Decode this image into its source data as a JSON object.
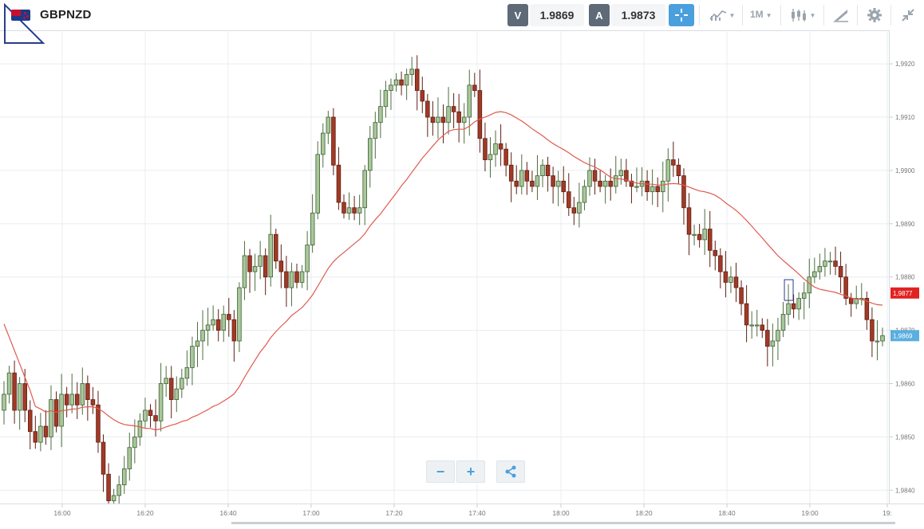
{
  "toolbar": {
    "symbol": "GBPNZD",
    "bid_label": "V",
    "bid_value": "1.9869",
    "ask_label": "A",
    "ask_value": "1.9873",
    "timeframe": "1M",
    "icons": [
      "flag-icon",
      "crosshair-icon",
      "indicators-icon",
      "timeframe-dropdown",
      "candles-icon",
      "draw-icon",
      "settings-icon",
      "collapse-icon"
    ]
  },
  "zoom": {
    "minus": "−",
    "plus": "+",
    "share_icon": "share-icon"
  },
  "colors": {
    "bull": "#5b8a4a",
    "bull_fill": "#a8c79a",
    "bear": "#8b2e1f",
    "bear_fill": "#a13a26",
    "ma": "#e05a50",
    "grid": "#e9ecef",
    "bid_tag": "#e12222",
    "last_tag": "#5aaee0"
  },
  "chart_data": {
    "type": "candlestick",
    "symbol": "GBPNZD",
    "x_unit": "time",
    "x_ticks": [
      "16:00",
      "16:20",
      "16:40",
      "17:00",
      "17:20",
      "17:40",
      "18:00",
      "18:20",
      "18:40",
      "19:00",
      "19:"
    ],
    "y_ticks": [
      "1,9920",
      "1,9910",
      "1,9900",
      "1,9890",
      "1,9880",
      "1,9870",
      "1,9860",
      "1,9850",
      "1,9840"
    ],
    "ylim": [
      1.98375,
      1.99263
    ],
    "price_tags": {
      "moving_average": "1,9877",
      "last": "1,9869"
    },
    "grid": true,
    "candles_close": [
      1.9858,
      1.9862,
      1.9855,
      1.986,
      1.9855,
      1.9851,
      1.9849,
      1.9852,
      1.985,
      1.9857,
      1.9852,
      1.9858,
      1.9856,
      1.9858,
      1.9856,
      1.986,
      1.9857,
      1.9856,
      1.9849,
      1.9843,
      1.9838,
      1.9839,
      1.9841,
      1.9844,
      1.9848,
      1.985,
      1.9853,
      1.9855,
      1.9854,
      1.9853,
      1.986,
      1.9861,
      1.9857,
      1.9859,
      1.9861,
      1.9863,
      1.9867,
      1.9868,
      1.987,
      1.9871,
      1.9872,
      1.987,
      1.9873,
      1.9872,
      1.9868,
      1.9878,
      1.9884,
      1.9881,
      1.9882,
      1.9884,
      1.988,
      1.9888,
      1.9883,
      1.9881,
      1.9878,
      1.9881,
      1.9879,
      1.9881,
      1.9886,
      1.9892,
      1.9903,
      1.9907,
      1.991,
      1.9901,
      1.9894,
      1.9892,
      1.9893,
      1.9892,
      1.9893,
      1.99,
      1.9906,
      1.9909,
      1.9912,
      1.9915,
      1.9916,
      1.9917,
      1.9916,
      1.9918,
      1.9919,
      1.9915,
      1.9913,
      1.991,
      1.9909,
      1.991,
      1.9909,
      1.9912,
      1.9911,
      1.9909,
      1.991,
      1.9916,
      1.9915,
      1.9906,
      1.9902,
      1.9903,
      1.9905,
      1.9904,
      1.9901,
      1.9898,
      1.9897,
      1.99,
      1.9898,
      1.9897,
      1.9899,
      1.9901,
      1.9899,
      1.9897,
      1.9898,
      1.9896,
      1.9893,
      1.9892,
      1.9894,
      1.9897,
      1.99,
      1.9898,
      1.9897,
      1.9898,
      1.9897,
      1.9899,
      1.99,
      1.9898,
      1.9897,
      1.9897,
      1.9898,
      1.9896,
      1.9897,
      1.9896,
      1.9898,
      1.9902,
      1.9901,
      1.9899,
      1.9893,
      1.9888,
      1.9888,
      1.9887,
      1.9889,
      1.9885,
      1.9884,
      1.9881,
      1.9879,
      1.988,
      1.9878,
      1.9875,
      1.9871,
      1.9871,
      1.9871,
      1.987,
      1.9867,
      1.9868,
      1.987,
      1.9873,
      1.9875,
      1.9874,
      1.9876,
      1.9877,
      1.988,
      1.9881,
      1.9882,
      1.9883,
      1.9883,
      1.9882,
      1.988,
      1.9876,
      1.9875,
      1.9876,
      1.9876,
      1.9872,
      1.9868,
      1.9868,
      1.9869
    ]
  }
}
